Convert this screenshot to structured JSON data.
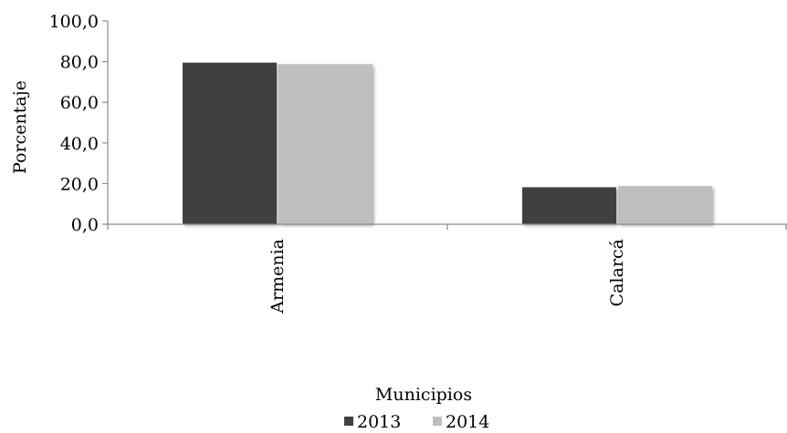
{
  "chart_data": {
    "type": "bar",
    "title": "",
    "xlabel": "Municipios",
    "ylabel": "Porcentaje",
    "categories": [
      "Armenia",
      "Calarcá"
    ],
    "series": [
      {
        "name": "2013",
        "values": [
          79.5,
          18.2
        ],
        "color": "#404040"
      },
      {
        "name": "2014",
        "values": [
          78.8,
          18.8
        ],
        "color": "#bfbfbf"
      }
    ],
    "ylim": [
      0,
      100
    ],
    "yticks": [
      "0,0",
      "20,0",
      "40,0",
      "60,0",
      "80,0",
      "100,0"
    ],
    "ytick_values": [
      0,
      20,
      40,
      60,
      80,
      100
    ],
    "grid": false,
    "legend_position": "bottom"
  }
}
